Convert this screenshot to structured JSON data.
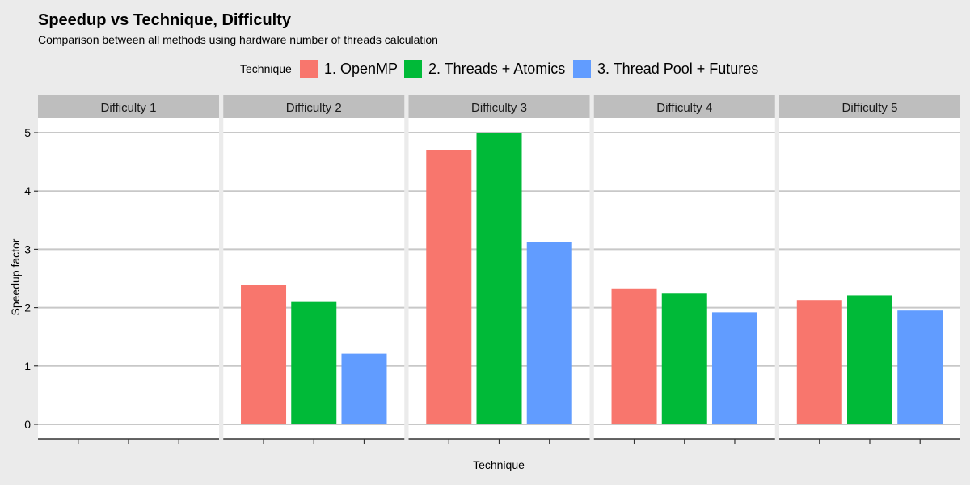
{
  "chart_data": {
    "type": "bar",
    "title": "Speedup vs Technique, Difficulty",
    "subtitle": "Comparison between all methods using hardware number of threads calculation",
    "xlabel": "Technique",
    "ylabel": "Speedup factor",
    "ylim": [
      0,
      5
    ],
    "yticks": [
      0,
      1,
      2,
      3,
      4,
      5
    ],
    "legend": {
      "title": "Technique",
      "placement": "top",
      "entries": [
        "1. OpenMP",
        "2. Threads + Atomics",
        "3. Thread Pool + Futures"
      ]
    },
    "colors": [
      "#F8766D",
      "#00BA38",
      "#619CFF"
    ],
    "panel_background": "#ffffff",
    "strip_background": "#bebebe",
    "grid": true,
    "facets": [
      {
        "label": "Difficulty 1",
        "values": [
          0,
          0,
          0
        ]
      },
      {
        "label": "Difficulty 2",
        "values": [
          2.39,
          2.11,
          1.21
        ]
      },
      {
        "label": "Difficulty 3",
        "values": [
          4.7,
          5.0,
          3.12
        ]
      },
      {
        "label": "Difficulty 4",
        "values": [
          2.33,
          2.24,
          1.92
        ]
      },
      {
        "label": "Difficulty 5",
        "values": [
          2.13,
          2.21,
          1.95
        ]
      }
    ]
  }
}
